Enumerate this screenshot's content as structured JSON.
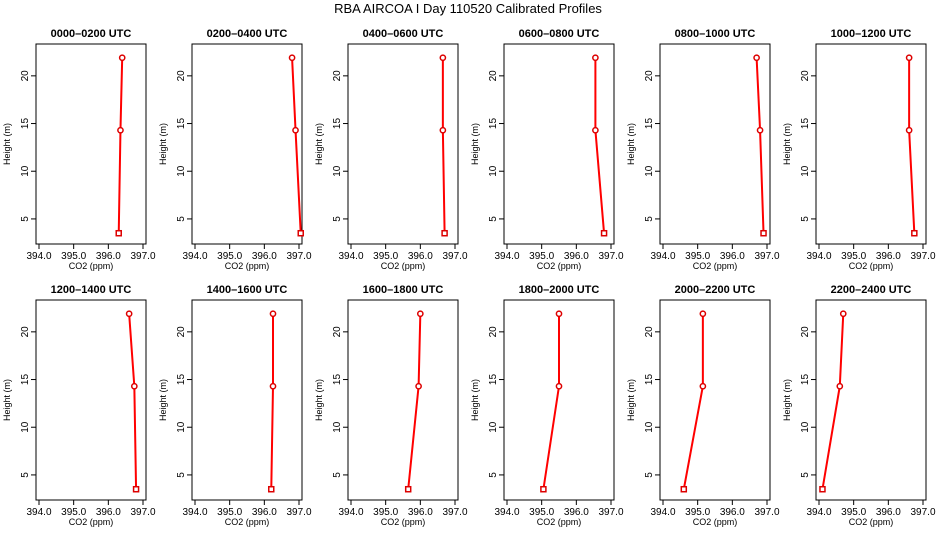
{
  "figure": {
    "title": "RBA AIRCOA I  Day 110520  Calibrated Profiles"
  },
  "colors": {
    "line": "#ff0000",
    "marker": "#dd0000",
    "axis": "#000000"
  },
  "chart_data": [
    {
      "type": "line",
      "title": "0000–0200 UTC",
      "xlabel": "CO2 (ppm)",
      "ylabel": "Height (m)",
      "xlim": [
        394.0,
        397.0
      ],
      "ylim": [
        3.0,
        22.5
      ],
      "xticks": [
        "394.0",
        "395.0",
        "396.0",
        "397.0"
      ],
      "yticks": [
        "5",
        "10",
        "15",
        "20"
      ],
      "grid": false,
      "x": [
        396.3,
        396.35,
        396.4
      ],
      "y": [
        3.5,
        14.3,
        21.9
      ]
    },
    {
      "type": "line",
      "title": "0200–0400 UTC",
      "xlabel": "CO2 (ppm)",
      "ylabel": "Height (m)",
      "xlim": [
        394.0,
        397.0
      ],
      "ylim": [
        3.0,
        22.5
      ],
      "xticks": [
        "394.0",
        "395.0",
        "396.0",
        "397.0"
      ],
      "yticks": [
        "5",
        "10",
        "15",
        "20"
      ],
      "grid": false,
      "x": [
        397.05,
        396.9,
        396.8
      ],
      "y": [
        3.5,
        14.3,
        21.9
      ]
    },
    {
      "type": "line",
      "title": "0400–0600 UTC",
      "xlabel": "CO2 (ppm)",
      "ylabel": "Height (m)",
      "xlim": [
        394.0,
        397.0
      ],
      "ylim": [
        3.0,
        22.5
      ],
      "xticks": [
        "394.0",
        "395.0",
        "396.0",
        "397.0"
      ],
      "yticks": [
        "5",
        "10",
        "15",
        "20"
      ],
      "grid": false,
      "x": [
        396.7,
        396.65,
        396.65
      ],
      "y": [
        3.5,
        14.3,
        21.9
      ]
    },
    {
      "type": "line",
      "title": "0600–0800 UTC",
      "xlabel": "CO2 (ppm)",
      "ylabel": "Height (m)",
      "xlim": [
        394.0,
        397.0
      ],
      "ylim": [
        3.0,
        22.5
      ],
      "xticks": [
        "394.0",
        "395.0",
        "396.0",
        "397.0"
      ],
      "yticks": [
        "5",
        "10",
        "15",
        "20"
      ],
      "grid": false,
      "x": [
        396.8,
        396.55,
        396.55
      ],
      "y": [
        3.5,
        14.3,
        21.9
      ]
    },
    {
      "type": "line",
      "title": "0800–1000 UTC",
      "xlabel": "CO2 (ppm)",
      "ylabel": "Height (m)",
      "xlim": [
        394.0,
        397.0
      ],
      "ylim": [
        3.0,
        22.5
      ],
      "xticks": [
        "394.0",
        "395.0",
        "396.0",
        "397.0"
      ],
      "yticks": [
        "5",
        "10",
        "15",
        "20"
      ],
      "grid": false,
      "x": [
        396.9,
        396.8,
        396.7
      ],
      "y": [
        3.5,
        14.3,
        21.9
      ]
    },
    {
      "type": "line",
      "title": "1000–1200 UTC",
      "xlabel": "CO2 (ppm)",
      "ylabel": "Height (m)",
      "xlim": [
        394.0,
        397.0
      ],
      "ylim": [
        3.0,
        22.5
      ],
      "xticks": [
        "394.0",
        "395.0",
        "396.0",
        "397.0"
      ],
      "yticks": [
        "5",
        "10",
        "15",
        "20"
      ],
      "grid": false,
      "x": [
        396.75,
        396.6,
        396.6
      ],
      "y": [
        3.5,
        14.3,
        21.9
      ]
    },
    {
      "type": "line",
      "title": "1200–1400 UTC",
      "xlabel": "CO2 (ppm)",
      "ylabel": "Height (m)",
      "xlim": [
        394.0,
        397.0
      ],
      "ylim": [
        3.0,
        22.5
      ],
      "xticks": [
        "394.0",
        "395.0",
        "396.0",
        "397.0"
      ],
      "yticks": [
        "5",
        "10",
        "15",
        "20"
      ],
      "grid": false,
      "x": [
        396.8,
        396.75,
        396.6
      ],
      "y": [
        3.5,
        14.3,
        21.9
      ]
    },
    {
      "type": "line",
      "title": "1400–1600 UTC",
      "xlabel": "CO2 (ppm)",
      "ylabel": "Height (m)",
      "xlim": [
        394.0,
        397.0
      ],
      "ylim": [
        3.0,
        22.5
      ],
      "xticks": [
        "394.0",
        "395.0",
        "396.0",
        "397.0"
      ],
      "yticks": [
        "5",
        "10",
        "15",
        "20"
      ],
      "grid": false,
      "x": [
        396.2,
        396.25,
        396.25
      ],
      "y": [
        3.5,
        14.3,
        21.9
      ]
    },
    {
      "type": "line",
      "title": "1600–1800 UTC",
      "xlabel": "CO2 (ppm)",
      "ylabel": "Height (m)",
      "xlim": [
        394.0,
        397.0
      ],
      "ylim": [
        3.0,
        22.5
      ],
      "xticks": [
        "394.0",
        "395.0",
        "396.0",
        "397.0"
      ],
      "yticks": [
        "5",
        "10",
        "15",
        "20"
      ],
      "grid": false,
      "x": [
        395.65,
        395.95,
        396.0
      ],
      "y": [
        3.5,
        14.3,
        21.9
      ]
    },
    {
      "type": "line",
      "title": "1800–2000 UTC",
      "xlabel": "CO2 (ppm)",
      "ylabel": "Height (m)",
      "xlim": [
        394.0,
        397.0
      ],
      "ylim": [
        3.0,
        22.5
      ],
      "xticks": [
        "394.0",
        "395.0",
        "396.0",
        "397.0"
      ],
      "yticks": [
        "5",
        "10",
        "15",
        "20"
      ],
      "grid": false,
      "x": [
        395.05,
        395.5,
        395.5
      ],
      "y": [
        3.5,
        14.3,
        21.9
      ]
    },
    {
      "type": "line",
      "title": "2000–2200 UTC",
      "xlabel": "CO2 (ppm)",
      "ylabel": "Height (m)",
      "xlim": [
        394.0,
        397.0
      ],
      "ylim": [
        3.0,
        22.5
      ],
      "xticks": [
        "394.0",
        "395.0",
        "396.0",
        "397.0"
      ],
      "yticks": [
        "5",
        "10",
        "15",
        "20"
      ],
      "grid": false,
      "x": [
        394.6,
        395.15,
        395.15
      ],
      "y": [
        3.5,
        14.3,
        21.9
      ]
    },
    {
      "type": "line",
      "title": "2200–2400 UTC",
      "xlabel": "CO2 (ppm)",
      "ylabel": "Height (m)",
      "xlim": [
        394.0,
        397.0
      ],
      "ylim": [
        3.0,
        22.5
      ],
      "xticks": [
        "394.0",
        "395.0",
        "396.0",
        "397.0"
      ],
      "yticks": [
        "5",
        "10",
        "15",
        "20"
      ],
      "grid": false,
      "x": [
        394.1,
        394.6,
        394.7
      ],
      "y": [
        3.5,
        14.3,
        21.9
      ]
    }
  ]
}
